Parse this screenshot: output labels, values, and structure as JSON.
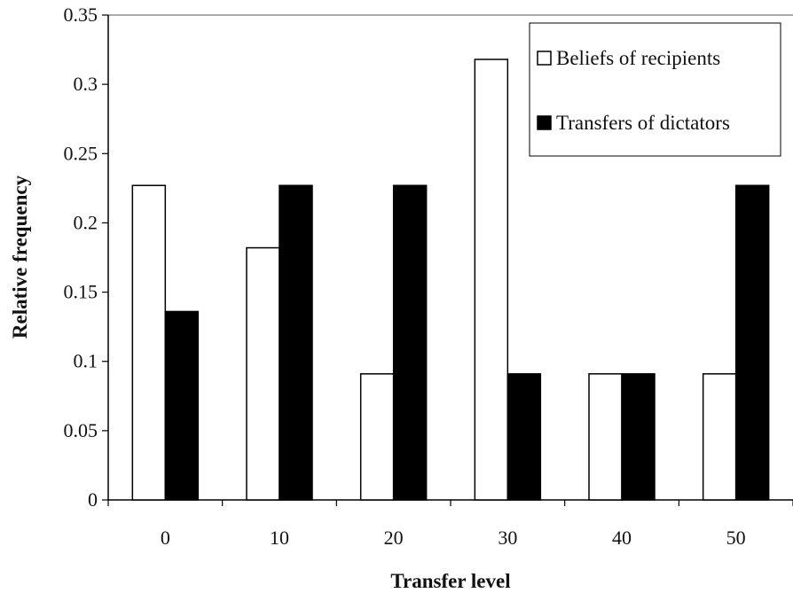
{
  "chart_data": {
    "type": "bar",
    "title": "",
    "xlabel": "Transfer level",
    "ylabel": "Relative frequency",
    "categories": [
      "0",
      "10",
      "20",
      "30",
      "40",
      "50"
    ],
    "ylim": [
      0,
      0.35
    ],
    "yticks": [
      "0",
      "0.05",
      "0.1",
      "0.15",
      "0.2",
      "0.25",
      "0.3",
      "0.35"
    ],
    "grid": false,
    "legend_position": "top-right",
    "series": [
      {
        "name": "Beliefs of recipients",
        "color": "#ffffff",
        "values": [
          0.227,
          0.182,
          0.091,
          0.318,
          0.091,
          0.091
        ]
      },
      {
        "name": "Transfers of dictators",
        "color": "#000000",
        "values": [
          0.136,
          0.227,
          0.227,
          0.091,
          0.091,
          0.227
        ]
      }
    ]
  }
}
